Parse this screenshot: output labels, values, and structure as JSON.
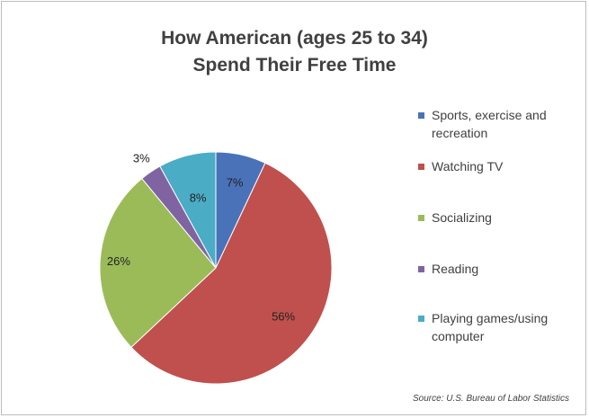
{
  "chart_data": {
    "type": "pie",
    "title": [
      "How American (ages 25 to 34)",
      "Spend Their Free Time"
    ],
    "source": "Source: U.S. Bureau of Labor Statistics",
    "slices": [
      {
        "label": "Sports, exercise and recreation",
        "value": 7,
        "value_label": "7%",
        "color": "#4a72b8"
      },
      {
        "label": "Watching TV",
        "value": 56,
        "value_label": "56%",
        "color": "#c0504d"
      },
      {
        "label": "Socializing",
        "value": 26,
        "value_label": "26%",
        "color": "#9bbb59"
      },
      {
        "label": "Reading",
        "value": 3,
        "value_label": "3%",
        "color": "#8064a2"
      },
      {
        "label": "Playing games/using computer",
        "value": 8,
        "value_label": "8%",
        "color": "#4bacc6"
      }
    ],
    "start_angle": "12 o'clock",
    "direction": "clockwise",
    "legend_position": "right",
    "legend": [
      {
        "line1": "Sports, exercise and",
        "line2": "recreation"
      },
      {
        "line1": "Watching TV",
        "line2": ""
      },
      {
        "line1": "Socializing",
        "line2": ""
      },
      {
        "line1": "Reading",
        "line2": ""
      },
      {
        "line1": "Playing games/using",
        "line2": "computer"
      }
    ]
  }
}
